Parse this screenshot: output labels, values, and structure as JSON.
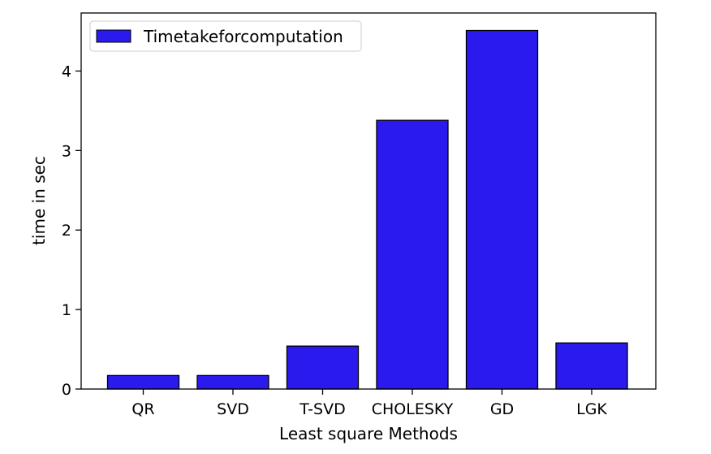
{
  "chart_data": {
    "type": "bar",
    "categories": [
      "QR",
      "SVD",
      "T-SVD",
      "CHOLESKY",
      "GD",
      "LGK"
    ],
    "series": [
      {
        "name": "Timetakeforcomputation",
        "values": [
          0.17,
          0.17,
          0.54,
          3.38,
          4.51,
          0.58
        ],
        "color": "#2b1aee"
      }
    ],
    "xlabel": "Least square Methods",
    "ylabel": "time in sec",
    "ylim": [
      0,
      4.73
    ],
    "yticks": [
      "0",
      "1",
      "2",
      "3",
      "4"
    ],
    "grid": false,
    "legend": "top-left"
  }
}
